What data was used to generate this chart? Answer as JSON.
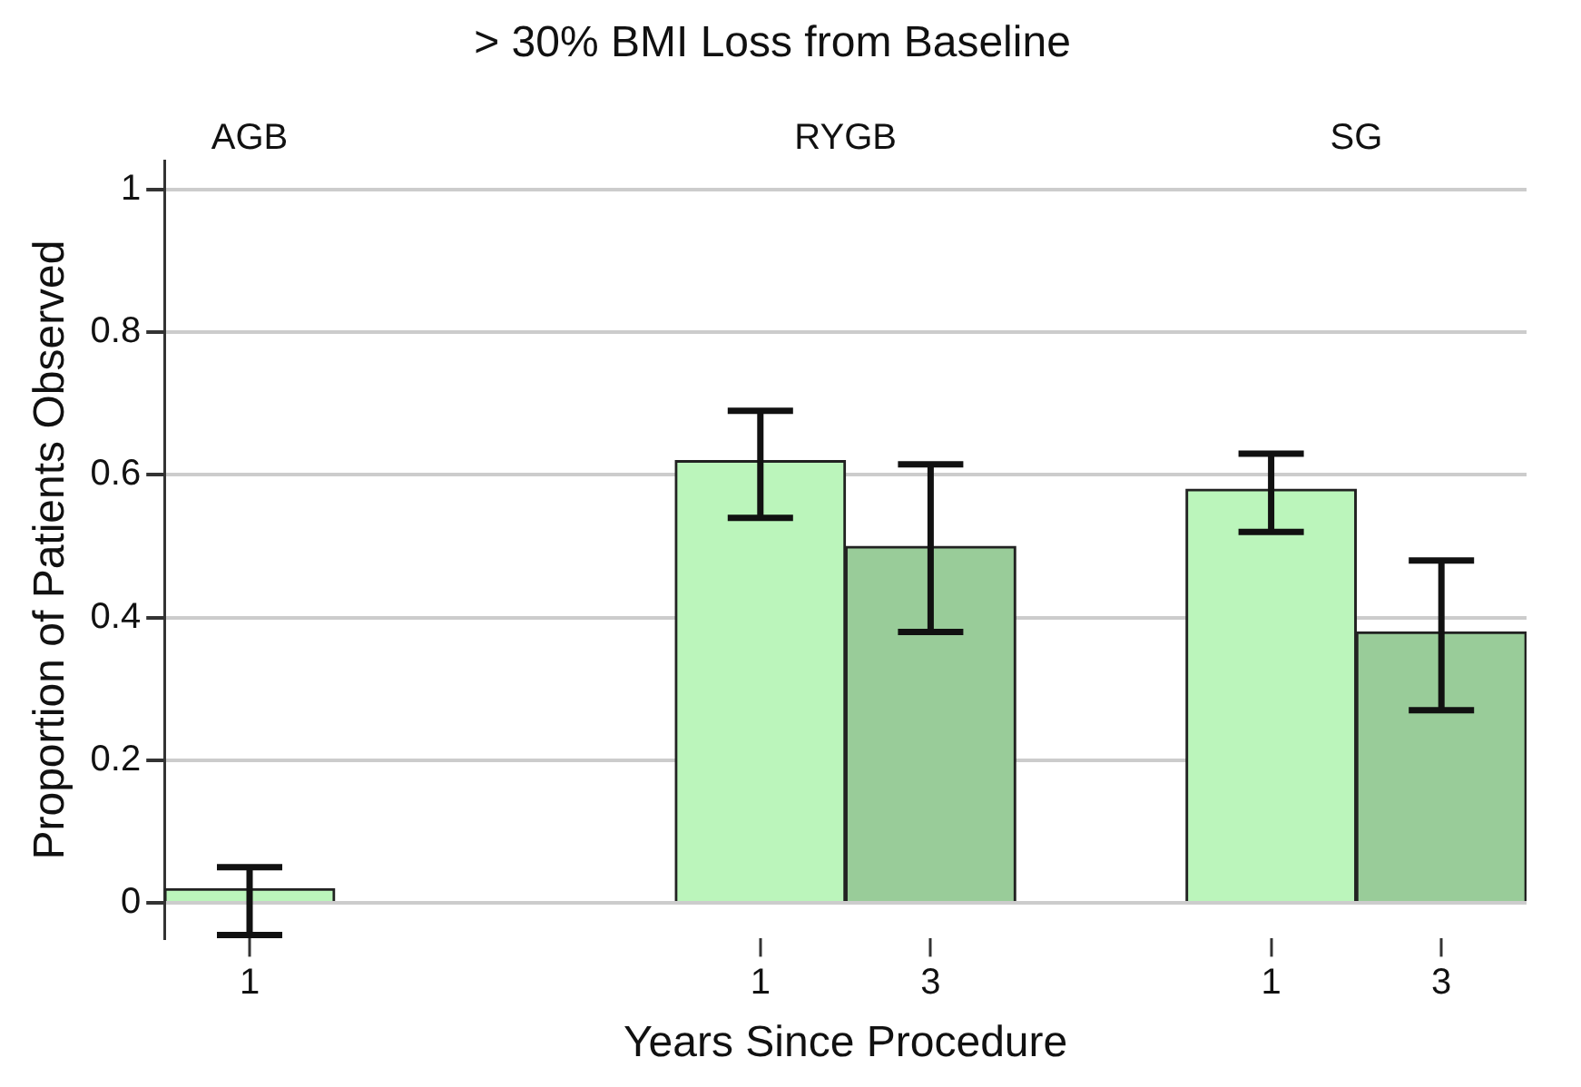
{
  "chart_data": {
    "type": "bar",
    "title": "> 30% BMI Loss from Baseline",
    "xlabel": "Years Since Procedure",
    "ylabel": "Proportion of Patients Observed",
    "categories": [
      "1",
      null,
      null,
      "1",
      "3",
      null,
      "1",
      "3"
    ],
    "values": [
      0.02,
      null,
      null,
      0.62,
      0.5,
      null,
      0.58,
      0.38
    ],
    "colors": [
      "#bbf5bb",
      null,
      null,
      "#bbf5bb",
      "#99cc99",
      null,
      "#bbf5bb",
      "#99cc99"
    ],
    "errors": [
      [
        -0.045,
        0.05
      ],
      null,
      null,
      [
        0.54,
        0.69
      ],
      [
        0.38,
        0.615
      ],
      null,
      [
        0.52,
        0.63
      ],
      [
        0.27,
        0.48
      ]
    ],
    "annotations": [
      "AGB",
      "RYGB",
      "SG"
    ],
    "ylim": [
      -0.05,
      1.04
    ],
    "yticks": [
      0,
      0.2,
      0.4,
      0.6,
      0.8,
      1
    ],
    "grid": "y",
    "legend": false
  }
}
